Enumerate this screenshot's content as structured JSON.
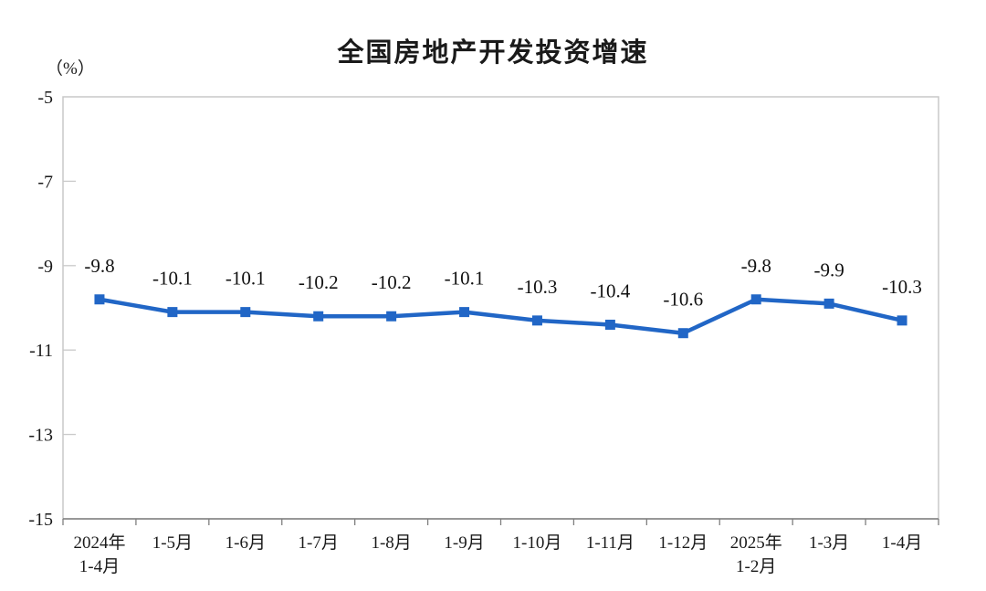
{
  "title": "全国房地产开发投资增速",
  "unit_label": "（%）",
  "colors": {
    "line": "#2166c6",
    "plot_border": "#c9c9c9",
    "axis_line": "#7f7f7f",
    "text": "#1a1a1a",
    "data_label": "#111111",
    "background": "#ffffff"
  },
  "chart_data": {
    "type": "line",
    "title": "全国房地产开发投资增速",
    "ylabel": "（%）",
    "xlabel": "",
    "ylim": [
      -15,
      -5
    ],
    "yticks": [
      -5,
      -7,
      -9,
      -11,
      -13,
      -15
    ],
    "grid": false,
    "legend_position": "none",
    "marker": "square",
    "categories": [
      [
        "2024年",
        "1-4月"
      ],
      [
        "1-5月"
      ],
      [
        "1-6月"
      ],
      [
        "1-7月"
      ],
      [
        "1-8月"
      ],
      [
        "1-9月"
      ],
      [
        "1-10月"
      ],
      [
        "1-11月"
      ],
      [
        "1-12月"
      ],
      [
        "2025年",
        "1-2月"
      ],
      [
        "1-3月"
      ],
      [
        "1-4月"
      ]
    ],
    "values": [
      -9.8,
      -10.1,
      -10.1,
      -10.2,
      -10.2,
      -10.1,
      -10.3,
      -10.4,
      -10.6,
      -9.8,
      -9.9,
      -10.3
    ],
    "data_labels": [
      "-9.8",
      "-10.1",
      "-10.1",
      "-10.2",
      "-10.2",
      "-10.1",
      "-10.3",
      "-10.4",
      "-10.6",
      "-9.8",
      "-9.9",
      "-10.3"
    ]
  }
}
